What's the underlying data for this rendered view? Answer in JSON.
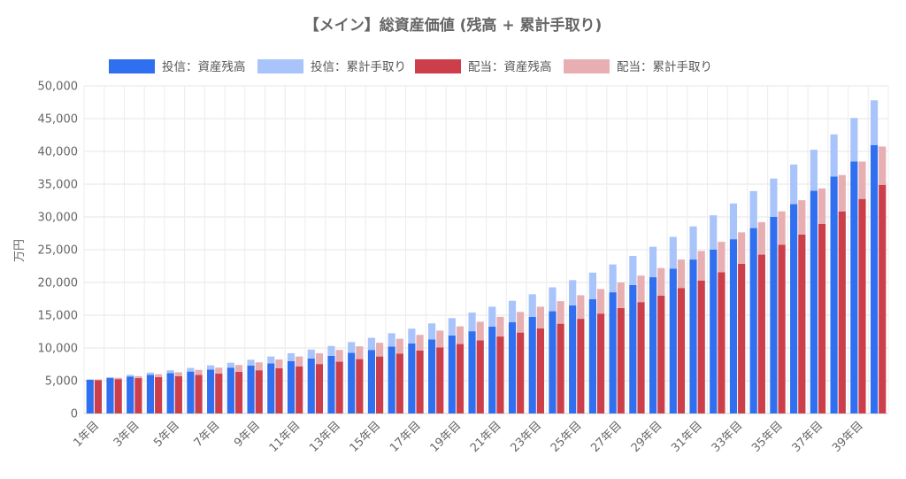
{
  "chart_data": {
    "type": "bar",
    "title": "【メイン】総資産価値 (残高 + 累計手取り)",
    "ylabel": "万円",
    "xlabel": "",
    "ylim": [
      0,
      50000
    ],
    "yticks": [
      "0",
      "5,000",
      "10,000",
      "15,000",
      "20,000",
      "25,000",
      "30,000",
      "35,000",
      "40,000",
      "45,000",
      "50,000"
    ],
    "categories": [
      "1年目",
      "2年目",
      "3年目",
      "4年目",
      "5年目",
      "6年目",
      "7年目",
      "8年目",
      "9年目",
      "10年目",
      "11年目",
      "12年目",
      "13年目",
      "14年目",
      "15年目",
      "16年目",
      "17年目",
      "18年目",
      "19年目",
      "20年目",
      "21年目",
      "22年目",
      "23年目",
      "24年目",
      "25年目",
      "26年目",
      "27年目",
      "28年目",
      "29年目",
      "30年目",
      "31年目",
      "32年目",
      "33年目",
      "34年目",
      "35年目",
      "36年目",
      "37年目",
      "38年目",
      "39年目",
      "40年目"
    ],
    "visible_tick_labels": [
      "1年目",
      "3年目",
      "5年目",
      "7年目",
      "9年目",
      "11年目",
      "13年目",
      "15年目",
      "17年目",
      "19年目",
      "21年目",
      "23年目",
      "25年目",
      "27年目",
      "29年目",
      "31年目",
      "33年目",
      "35年目",
      "37年目",
      "39年目"
    ],
    "stacks": [
      {
        "stack": "投信",
        "series": [
          {
            "name": "投信：資産残高",
            "color": "#2f6ff0",
            "values": [
              5150,
              5400,
              5650,
              5900,
              6150,
              6400,
              6700,
              7000,
              7300,
              7650,
              8000,
              8400,
              8800,
              9250,
              9700,
              10200,
              10700,
              11300,
              11900,
              12550,
              13250,
              13950,
              14750,
              15600,
              16500,
              17450,
              18500,
              19600,
              20800,
              22100,
              23500,
              25000,
              26600,
              28300,
              30000,
              31950,
              34000,
              36150,
              38450,
              40950
            ]
          },
          {
            "name": "投信：累計手取り",
            "color": "#a8c4fa",
            "values": [
              50,
              150,
              250,
              350,
              450,
              550,
              650,
              750,
              900,
              1050,
              1200,
              1350,
              1500,
              1650,
              1850,
              2050,
              2250,
              2450,
              2650,
              2850,
              3050,
              3250,
              3450,
              3650,
              3850,
              4050,
              4250,
              4450,
              4650,
              4850,
              5050,
              5250,
              5450,
              5650,
              5850,
              6050,
              6250,
              6450,
              6650,
              6850
            ]
          }
        ]
      },
      {
        "stack": "配当",
        "series": [
          {
            "name": "配当：資産残高",
            "color": "#cc3f4a",
            "values": [
              5100,
              5250,
              5400,
              5550,
              5700,
              5900,
              6100,
              6350,
              6600,
              6900,
              7200,
              7550,
              7900,
              8300,
              8700,
              9150,
              9600,
              10100,
              10600,
              11150,
              11750,
              12350,
              13000,
              13700,
              14450,
              15250,
              16100,
              17000,
              18000,
              19150,
              20300,
              21550,
              22850,
              24250,
              25750,
              27300,
              28950,
              30850,
              32750,
              34900
            ]
          },
          {
            "name": "配当：累計手取り",
            "color": "#e8afb3",
            "values": [
              100,
              200,
              300,
              450,
              600,
              750,
              900,
              1050,
              1200,
              1350,
              1500,
              1650,
              1800,
              1950,
              2100,
              2250,
              2400,
              2550,
              2700,
              2850,
              3000,
              3150,
              3300,
              3450,
              3600,
              3750,
              3900,
              4050,
              4200,
              4350,
              4500,
              4650,
              4800,
              4950,
              5100,
              5250,
              5400,
              5550,
              5700,
              5850
            ]
          }
        ]
      }
    ],
    "legend_position": "top",
    "grid": true
  }
}
